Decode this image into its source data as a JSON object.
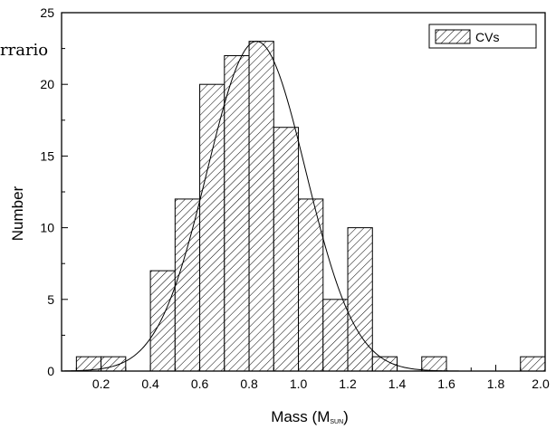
{
  "chart_data": {
    "type": "bar",
    "bin_width": 0.1,
    "bin_starts": [
      0.1,
      0.2,
      0.4,
      0.5,
      0.6,
      0.7,
      0.8,
      0.9,
      1.0,
      1.1,
      1.2,
      1.3,
      1.5,
      1.9
    ],
    "values": [
      1,
      1,
      7,
      12,
      20,
      22,
      23,
      17,
      12,
      5,
      10,
      1,
      1,
      1
    ],
    "series": [
      {
        "name": "CVs",
        "pattern": "diagonal-hatch"
      }
    ],
    "fit": {
      "type": "gaussian",
      "mean": 0.83,
      "sigma": 0.2,
      "amplitude": 23
    },
    "xlabel": "Mass (M",
    "xlabel_sub": "SUN",
    "xlabel_close": ")",
    "ylabel": "Number",
    "xlim": [
      0.04,
      2.0
    ],
    "ylim": [
      0,
      25
    ],
    "xticks": [
      0.2,
      0.4,
      0.6,
      0.8,
      1.0,
      1.2,
      1.4,
      1.6,
      1.8,
      2.0
    ],
    "yticks": [
      0,
      5,
      10,
      15,
      20,
      25
    ],
    "legend_placement": "top-right",
    "grid": false
  },
  "overlay_fragment": "rrario",
  "colors": {
    "ink": "#000000",
    "background": "#ffffff"
  }
}
